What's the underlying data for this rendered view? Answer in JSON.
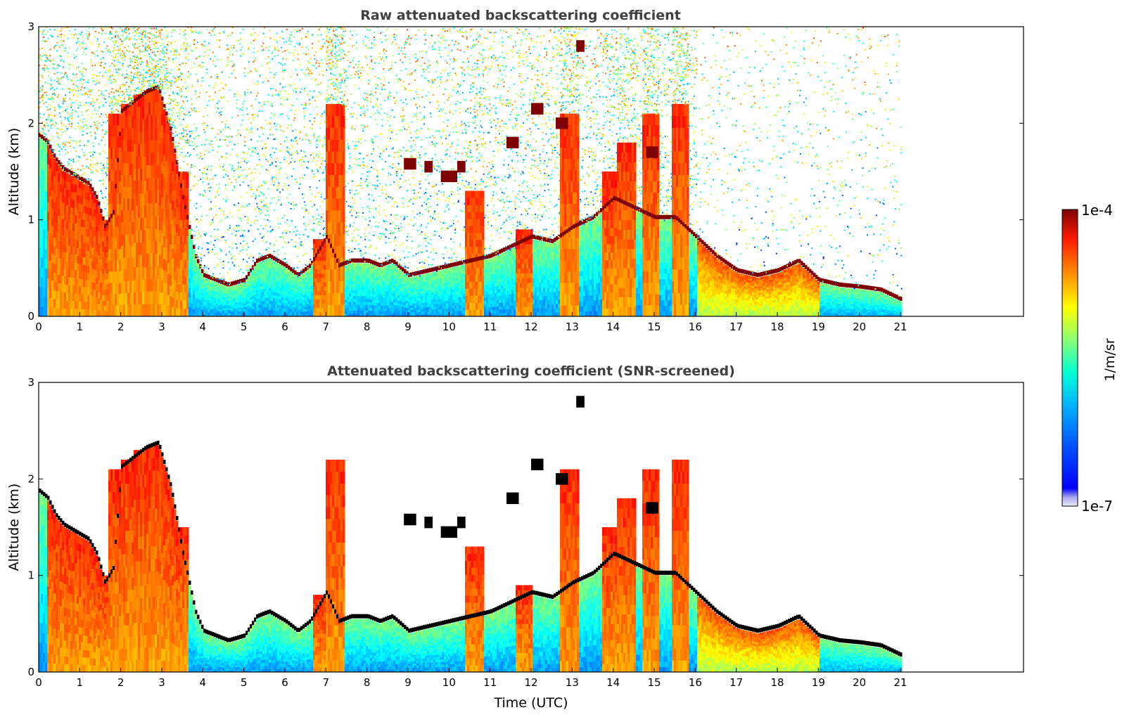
{
  "colors": {
    "colormap": [
      "#00007f",
      "#0000ff",
      "#007fff",
      "#00ffff",
      "#7fff7f",
      "#ffff00",
      "#ff7f00",
      "#ff0000",
      "#7f0000"
    ],
    "low_tint": [
      "#e9e9f6",
      "#c9c9ef",
      "#a7a7ee",
      "#8282f0"
    ],
    "cloud_base_screened": "#000000"
  },
  "chart_data": [
    {
      "type": "heatmap",
      "title": "Raw attenuated backscattering coefficient",
      "ylabel": "Altitude (km)",
      "xlabel": "",
      "xlim": [
        0,
        24
      ],
      "ylim": [
        0,
        3
      ],
      "x_ticks": [
        "0",
        "1",
        "2",
        "3",
        "4",
        "5",
        "6",
        "7",
        "8",
        "9",
        "10",
        "11",
        "12",
        "13",
        "14",
        "15",
        "16",
        "17",
        "18",
        "19",
        "20",
        "21"
      ],
      "y_ticks": [
        "0",
        "1",
        "2",
        "3"
      ],
      "data_end_time": 21,
      "screened": false,
      "boundary_layer_top_km": [
        [
          0,
          1.85
        ],
        [
          0.2,
          1.78
        ],
        [
          0.4,
          1.6
        ],
        [
          0.6,
          1.5
        ],
        [
          0.8,
          1.45
        ],
        [
          1,
          1.4
        ],
        [
          1.2,
          1.35
        ],
        [
          1.4,
          1.2
        ],
        [
          1.6,
          0.9
        ],
        [
          1.8,
          1.05
        ],
        [
          2,
          2.1
        ],
        [
          2.3,
          2.2
        ],
        [
          2.6,
          2.3
        ],
        [
          2.9,
          2.35
        ],
        [
          3.2,
          1.9
        ],
        [
          3.5,
          1.2
        ],
        [
          3.8,
          0.6
        ],
        [
          4,
          0.4
        ],
        [
          4.3,
          0.35
        ],
        [
          4.6,
          0.3
        ],
        [
          5,
          0.35
        ],
        [
          5.3,
          0.55
        ],
        [
          5.6,
          0.6
        ],
        [
          6,
          0.5
        ],
        [
          6.3,
          0.4
        ],
        [
          6.6,
          0.5
        ],
        [
          7,
          0.8
        ],
        [
          7.3,
          0.5
        ],
        [
          7.6,
          0.55
        ],
        [
          8,
          0.55
        ],
        [
          8.3,
          0.5
        ],
        [
          8.6,
          0.55
        ],
        [
          9,
          0.4
        ],
        [
          9.5,
          0.45
        ],
        [
          10,
          0.5
        ],
        [
          10.5,
          0.55
        ],
        [
          11,
          0.6
        ],
        [
          11.5,
          0.7
        ],
        [
          12,
          0.8
        ],
        [
          12.5,
          0.75
        ],
        [
          13,
          0.9
        ],
        [
          13.5,
          1.0
        ],
        [
          14,
          1.2
        ],
        [
          14.5,
          1.1
        ],
        [
          15,
          1.0
        ],
        [
          15.5,
          1.0
        ],
        [
          16,
          0.8
        ],
        [
          16.5,
          0.6
        ],
        [
          17,
          0.45
        ],
        [
          17.5,
          0.4
        ],
        [
          18,
          0.45
        ],
        [
          18.5,
          0.55
        ],
        [
          19,
          0.35
        ],
        [
          19.5,
          0.3
        ],
        [
          20,
          0.28
        ],
        [
          20.5,
          0.25
        ],
        [
          21,
          0.15
        ]
      ],
      "aerosol_columns_km": [
        [
          0.4,
          1.5
        ],
        [
          0.7,
          1.45
        ],
        [
          1.1,
          1.35
        ],
        [
          1.5,
          1.0
        ],
        [
          1.9,
          2.1
        ],
        [
          2.2,
          2.2
        ],
        [
          2.5,
          2.3
        ],
        [
          2.8,
          2.35
        ],
        [
          3.1,
          2.0
        ],
        [
          3.4,
          1.5
        ],
        [
          6.9,
          0.8
        ],
        [
          7.2,
          2.2
        ],
        [
          10.6,
          1.3
        ],
        [
          11.8,
          0.9
        ],
        [
          12.9,
          2.1
        ],
        [
          13.9,
          1.5
        ],
        [
          14.3,
          1.8
        ],
        [
          14.9,
          2.1
        ],
        [
          15.6,
          2.2
        ]
      ],
      "cloud_segments_km": [
        [
          8.9,
          9.2,
          1.58
        ],
        [
          9.4,
          9.6,
          1.55
        ],
        [
          9.8,
          10.2,
          1.45
        ],
        [
          10.2,
          10.4,
          1.55
        ],
        [
          11.4,
          11.7,
          1.8
        ],
        [
          12.0,
          12.3,
          2.15
        ],
        [
          12.6,
          12.9,
          2.0
        ],
        [
          13.1,
          13.3,
          2.8
        ],
        [
          14.8,
          15.1,
          1.7
        ]
      ]
    },
    {
      "type": "heatmap",
      "title": "Attenuated backscattering coefficient (SNR-screened)",
      "ylabel": "Altitude (km)",
      "xlabel": "Time (UTC)",
      "xlim": [
        0,
        24
      ],
      "ylim": [
        0,
        3
      ],
      "x_ticks": [
        "0",
        "1",
        "2",
        "3",
        "4",
        "5",
        "6",
        "7",
        "8",
        "9",
        "10",
        "11",
        "12",
        "13",
        "14",
        "15",
        "16",
        "17",
        "18",
        "19",
        "20",
        "21"
      ],
      "y_ticks": [
        "0",
        "1",
        "2",
        "3"
      ],
      "data_end_time": 21,
      "screened": true
    }
  ],
  "colorbar": {
    "label": "1/m/sr",
    "max_label": "1e-4",
    "min_label": "1e-7"
  }
}
